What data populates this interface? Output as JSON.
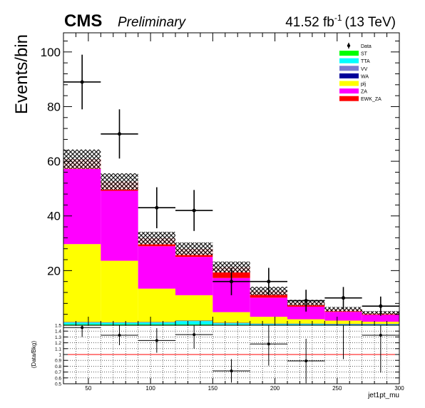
{
  "header": {
    "experiment": "CMS",
    "status": "Preliminary",
    "lumi_text": "41.52 fb",
    "lumi_exp": "-1",
    "energy_text": "(13 TeV)"
  },
  "chart_data": [
    {
      "type": "bar",
      "stacked": true,
      "xlabel": "",
      "ylabel": "Events/bin",
      "xlim": [
        30,
        300
      ],
      "ylim": [
        0,
        107
      ],
      "bin_edges": [
        30,
        60,
        90,
        120,
        150,
        180,
        210,
        240,
        270,
        300
      ],
      "yticks": [
        20,
        40,
        60,
        80,
        100
      ],
      "series": [
        {
          "name": "ST",
          "color": "#00ff00",
          "values": [
            0.3,
            0.3,
            0.3,
            0.3,
            0.2,
            0.1,
            0.1,
            0.1,
            0.1
          ]
        },
        {
          "name": "TTA",
          "color": "#00ffff",
          "values": [
            0.7,
            0.6,
            0.7,
            1.2,
            0.5,
            0.3,
            0.3,
            0.2,
            0.2
          ]
        },
        {
          "name": "VV",
          "color": "#7b7bd1",
          "values": [
            0.1,
            0.1,
            0.1,
            0.1,
            0.1,
            0.1,
            0.1,
            0.1,
            0.1
          ]
        },
        {
          "name": "WA",
          "color": "#000099",
          "values": [
            0.1,
            0.1,
            0.1,
            0.1,
            0.1,
            0.1,
            0.1,
            0.1,
            0.1
          ]
        },
        {
          "name": "plj",
          "color": "#ffff00",
          "values": [
            28.5,
            22.5,
            12.2,
            9.3,
            3.9,
            2.5,
            1.6,
            1.2,
            0.8
          ]
        },
        {
          "name": "ZA",
          "color": "#ff00ff",
          "values": [
            27.5,
            25.6,
            15.5,
            14.0,
            12.5,
            7.0,
            4.6,
            3.2,
            2.5
          ]
        },
        {
          "name": "EWK_ZA",
          "color": "#ff0000",
          "values": [
            3.6,
            3.4,
            3.0,
            3.0,
            4.0,
            2.5,
            1.5,
            1.0,
            0.8
          ]
        }
      ],
      "uncertainty": [
        3.5,
        3.0,
        2.3,
        2.3,
        2.0,
        1.5,
        1.0,
        0.8,
        0.6
      ],
      "data": {
        "name": "Data",
        "values": [
          89,
          70,
          43,
          42,
          16,
          16,
          9,
          10,
          7
        ],
        "errors": [
          10,
          9,
          7.5,
          7.5,
          5,
          5,
          4,
          4,
          3.5
        ]
      },
      "legend_position": "top-right"
    },
    {
      "type": "scatter",
      "xlabel": "jet1pt_mu",
      "ylabel": "(Data/Bkg)",
      "xlim": [
        30,
        300
      ],
      "ylim": [
        0.5,
        1.5
      ],
      "xticks": [
        50,
        100,
        150,
        200,
        250,
        300
      ],
      "yticks": [
        0.5,
        0.6,
        0.7,
        0.8,
        0.9,
        1,
        1.1,
        1.2,
        1.3,
        1.4,
        1.5
      ],
      "reference_line": 1,
      "reference_color": "#ff0000",
      "x": [
        45,
        75,
        105,
        135,
        165,
        195,
        225,
        255,
        285
      ],
      "y": [
        1.46,
        1.33,
        1.24,
        1.34,
        0.72,
        1.18,
        0.89,
        1.53,
        1.33
      ],
      "yerr": [
        0.16,
        0.17,
        0.21,
        0.24,
        0.2,
        0.37,
        0.38,
        0.61,
        0.64
      ]
    }
  ]
}
